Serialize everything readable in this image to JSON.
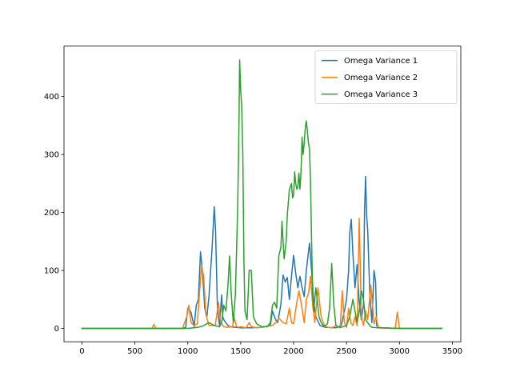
{
  "chart_data": {
    "type": "line",
    "title": "",
    "xlabel": "",
    "ylabel": "",
    "xlim": [
      -170,
      3580
    ],
    "ylim": [
      -23,
      487
    ],
    "xticks": [
      0,
      500,
      1000,
      1500,
      2000,
      2500,
      3000,
      3500
    ],
    "yticks": [
      0,
      100,
      200,
      300,
      400
    ],
    "grid": false,
    "legend_position": "top-right",
    "series": [
      {
        "name": "Omega Variance 1",
        "color": "#1f77b4",
        "x": [
          0,
          950,
          980,
          1000,
          1030,
          1060,
          1080,
          1100,
          1120,
          1140,
          1160,
          1180,
          1200,
          1230,
          1250,
          1262,
          1280,
          1300,
          1320,
          1330,
          1340,
          1360,
          1380,
          1400,
          1450,
          1500,
          1600,
          1700,
          1780,
          1800,
          1830,
          1850,
          1880,
          1900,
          1920,
          1940,
          1960,
          1980,
          2000,
          2020,
          2040,
          2060,
          2080,
          2100,
          2120,
          2150,
          2170,
          2190,
          2210,
          2250,
          2300,
          2400,
          2450,
          2480,
          2500,
          2520,
          2530,
          2545,
          2560,
          2580,
          2600,
          2620,
          2640,
          2660,
          2670,
          2680,
          2690,
          2700,
          2720,
          2740,
          2760,
          2775,
          2785,
          2800,
          2850,
          3000,
          3400
        ],
        "y": [
          0,
          0,
          2,
          35,
          28,
          3,
          40,
          50,
          132,
          95,
          35,
          20,
          55,
          140,
          210,
          170,
          35,
          5,
          58,
          20,
          15,
          10,
          5,
          3,
          2,
          1,
          1,
          2,
          5,
          30,
          15,
          10,
          42,
          92,
          80,
          88,
          50,
          90,
          126,
          95,
          70,
          90,
          70,
          55,
          100,
          147,
          100,
          45,
          20,
          5,
          2,
          1,
          5,
          30,
          50,
          100,
          165,
          188,
          130,
          70,
          110,
          45,
          15,
          40,
          200,
          262,
          195,
          170,
          60,
          10,
          100,
          80,
          5,
          2,
          1,
          0,
          0
        ]
      },
      {
        "name": "Omega Variance 2",
        "color": "#ff7f0e",
        "x": [
          0,
          660,
          680,
          700,
          950,
          990,
          1010,
          1030,
          1060,
          1090,
          1110,
          1130,
          1150,
          1170,
          1200,
          1260,
          1290,
          1310,
          1340,
          1380,
          1400,
          1420,
          1440,
          1460,
          1480,
          1500,
          1530,
          1550,
          1580,
          1600,
          1650,
          1700,
          1800,
          1840,
          1860,
          1900,
          1930,
          1960,
          1980,
          2000,
          2030,
          2050,
          2070,
          2100,
          2120,
          2140,
          2160,
          2180,
          2200,
          2230,
          2260,
          2290,
          2320,
          2360,
          2380,
          2400,
          2420,
          2440,
          2460,
          2480,
          2500,
          2520,
          2540,
          2560,
          2580,
          2600,
          2620,
          2640,
          2660,
          2680,
          2700,
          2730,
          2760,
          2780,
          2800,
          2960,
          2980,
          3000,
          3050,
          3400
        ],
        "y": [
          0,
          0,
          7,
          0,
          0,
          20,
          40,
          10,
          5,
          8,
          60,
          108,
          90,
          25,
          5,
          5,
          45,
          10,
          3,
          2,
          3,
          2,
          18,
          3,
          2,
          3,
          2,
          1,
          10,
          3,
          1,
          2,
          5,
          12,
          18,
          10,
          8,
          35,
          10,
          8,
          45,
          65,
          45,
          10,
          50,
          60,
          90,
          40,
          10,
          70,
          20,
          5,
          2,
          1,
          3,
          5,
          3,
          1,
          65,
          10,
          2,
          35,
          10,
          5,
          20,
          5,
          190,
          20,
          5,
          30,
          15,
          75,
          8,
          20,
          1,
          0,
          28,
          0,
          0,
          0
        ]
      },
      {
        "name": "Omega Variance 3",
        "color": "#2ca02c",
        "x": [
          0,
          1000,
          1100,
          1150,
          1200,
          1250,
          1300,
          1320,
          1340,
          1360,
          1380,
          1395,
          1410,
          1430,
          1450,
          1470,
          1480,
          1490,
          1500,
          1510,
          1520,
          1530,
          1540,
          1560,
          1580,
          1600,
          1620,
          1650,
          1700,
          1750,
          1780,
          1800,
          1820,
          1840,
          1860,
          1880,
          1890,
          1910,
          1930,
          1940,
          1960,
          1980,
          1990,
          2000,
          2010,
          2020,
          2030,
          2040,
          2050,
          2060,
          2070,
          2080,
          2090,
          2100,
          2110,
          2120,
          2130,
          2140,
          2150,
          2160,
          2170,
          2180,
          2190,
          2200,
          2210,
          2220,
          2240,
          2260,
          2280,
          2300,
          2320,
          2340,
          2360,
          2380,
          2400,
          2420,
          2450,
          2500,
          2530,
          2560,
          2580,
          2600,
          2620,
          2640,
          2660,
          2680,
          2700,
          2720,
          2740,
          2800,
          3000,
          3400
        ],
        "y": [
          0,
          0,
          2,
          5,
          10,
          5,
          3,
          10,
          40,
          30,
          75,
          125,
          60,
          10,
          60,
          200,
          300,
          463,
          410,
          380,
          300,
          120,
          30,
          15,
          100,
          100,
          20,
          8,
          3,
          3,
          10,
          40,
          45,
          35,
          125,
          140,
          185,
          120,
          150,
          195,
          240,
          250,
          225,
          230,
          270,
          250,
          240,
          245,
          268,
          240,
          270,
          330,
          300,
          320,
          345,
          358,
          340,
          320,
          310,
          250,
          150,
          60,
          30,
          50,
          70,
          55,
          20,
          10,
          5,
          5,
          8,
          35,
          112,
          40,
          5,
          3,
          2,
          5,
          20,
          50,
          30,
          10,
          30,
          65,
          50,
          15,
          10,
          5,
          2,
          1,
          0,
          0
        ]
      }
    ]
  }
}
